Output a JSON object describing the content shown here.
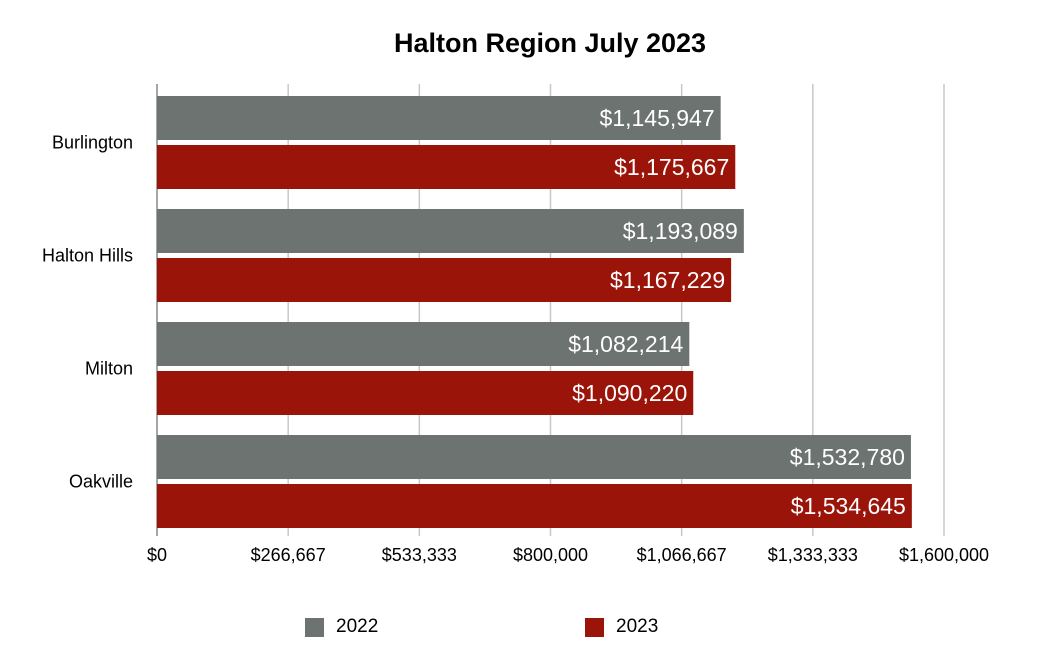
{
  "chart_data": {
    "type": "bar",
    "orientation": "horizontal",
    "title": "Halton Region July 2023",
    "xlabel": "",
    "ylabel": "",
    "categories": [
      "Burlington",
      "Halton Hills",
      "Milton",
      "Oakville"
    ],
    "series": [
      {
        "name": "2022",
        "color": "#6d7370",
        "values": [
          1145947,
          1193089,
          1082214,
          1532780
        ]
      },
      {
        "name": "2023",
        "color": "#9b1409",
        "values": [
          1175667,
          1167229,
          1090220,
          1534645
        ]
      }
    ],
    "data_labels": {
      "2022": [
        "$1,145,947",
        "$1,193,089",
        "$1,082,214",
        "$1,532,780"
      ],
      "2023": [
        "$1,175,667",
        "$1,167,229",
        "$1,090,220",
        "$1,534,645"
      ]
    },
    "xlim": [
      0,
      1600000
    ],
    "x_ticks": [
      0,
      266667,
      533333,
      800000,
      1066667,
      1333333,
      1600000
    ],
    "x_tick_labels": [
      "$0",
      "$266,667",
      "$533,333",
      "$800,000",
      "$1,066,667",
      "$1,333,333",
      "$1,600,000"
    ],
    "grid": true,
    "legend_position": "bottom"
  }
}
